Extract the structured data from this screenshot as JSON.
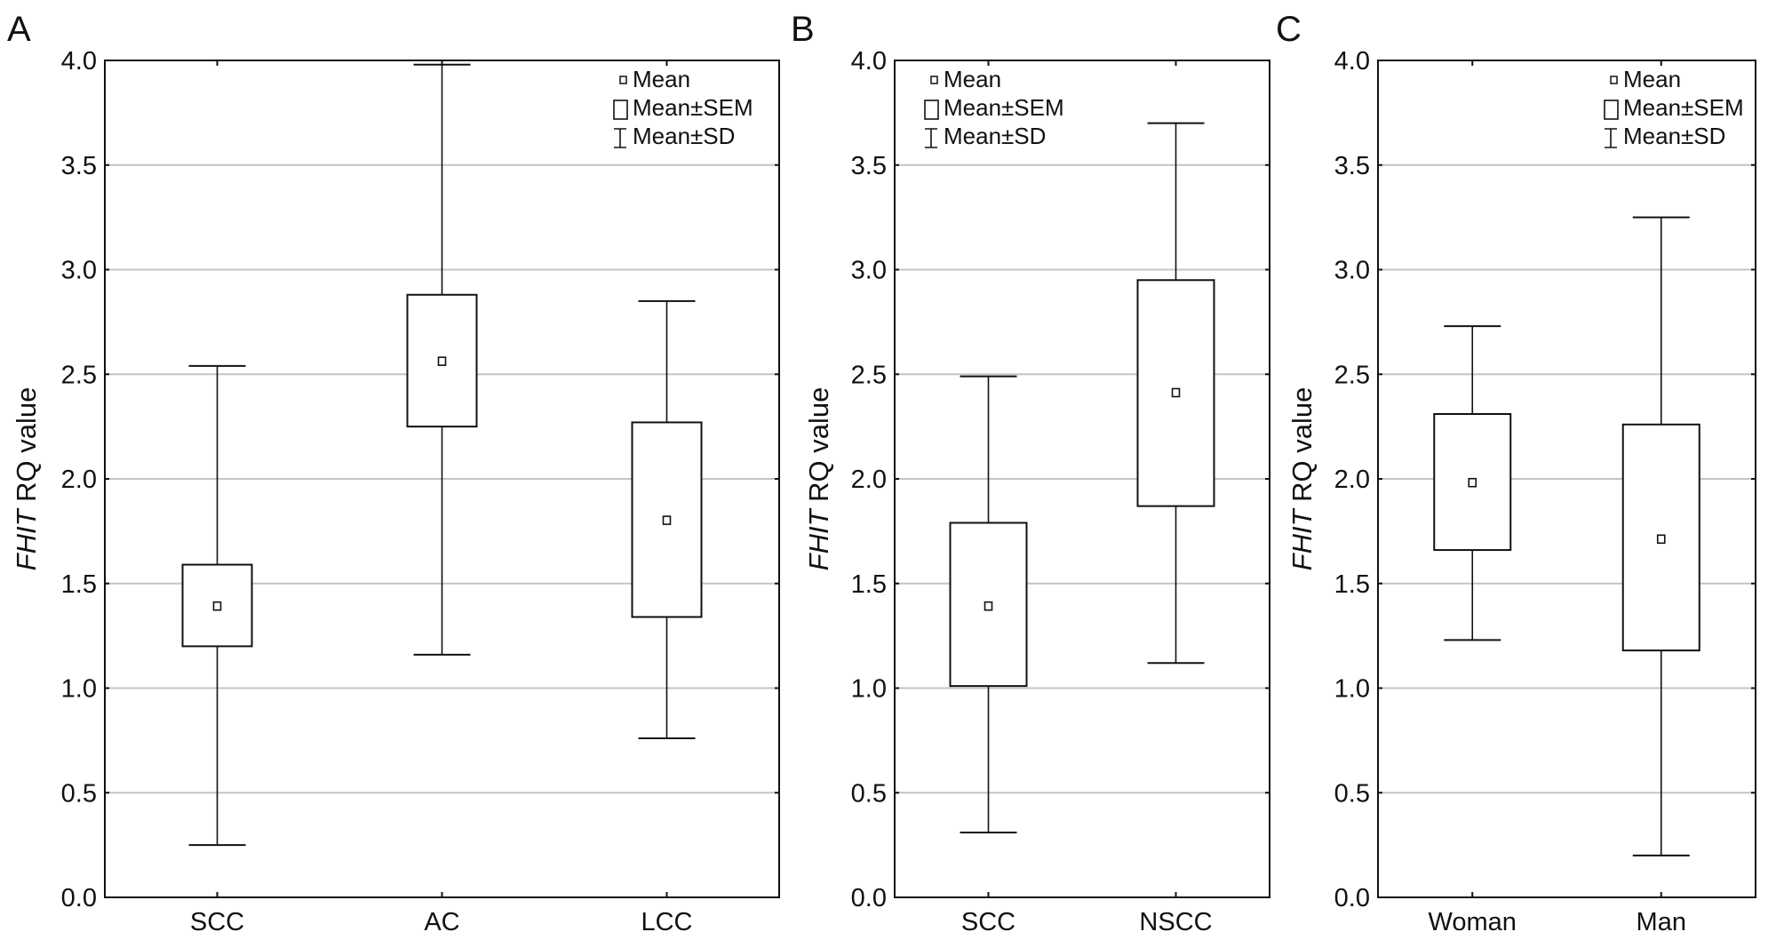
{
  "chart_data": [
    {
      "type": "box",
      "panel_label": "A",
      "ylabel_italic": "FHIT",
      "ylabel_rest": " RQ value",
      "ylim": [
        0,
        4
      ],
      "yticks": [
        "0.0",
        "0.5",
        "1.0",
        "1.5",
        "2.0",
        "2.5",
        "3.0",
        "3.5",
        "4.0"
      ],
      "grid": true,
      "legend_position": "top-right",
      "legend": [
        "Mean",
        "Mean±SEM",
        "Mean±SD"
      ],
      "categories": [
        "SCC",
        "AC",
        "LCC"
      ],
      "mean": [
        1.39,
        2.56,
        1.8
      ],
      "sem_low": [
        1.2,
        2.25,
        1.34
      ],
      "sem_high": [
        1.59,
        2.88,
        2.27
      ],
      "sd_low": [
        0.25,
        1.16,
        0.76
      ],
      "sd_high": [
        2.54,
        3.98,
        2.85
      ]
    },
    {
      "type": "box",
      "panel_label": "B",
      "ylabel_italic": "FHIT",
      "ylabel_rest": " RQ value",
      "ylim": [
        0,
        4
      ],
      "yticks": [
        "0.0",
        "0.5",
        "1.0",
        "1.5",
        "2.0",
        "2.5",
        "3.0",
        "3.5",
        "4.0"
      ],
      "grid": true,
      "legend_position": "top-left",
      "legend": [
        "Mean",
        "Mean±SEM",
        "Mean±SD"
      ],
      "categories": [
        "SCC",
        "NSCC"
      ],
      "mean": [
        1.39,
        2.41
      ],
      "sem_low": [
        1.01,
        1.87
      ],
      "sem_high": [
        1.79,
        2.95
      ],
      "sd_low": [
        0.31,
        1.12
      ],
      "sd_high": [
        2.49,
        3.7
      ]
    },
    {
      "type": "box",
      "panel_label": "C",
      "ylabel_italic": "FHIT",
      "ylabel_rest": " RQ value",
      "ylim": [
        0,
        4
      ],
      "yticks": [
        "0.0",
        "0.5",
        "1.0",
        "1.5",
        "2.0",
        "2.5",
        "3.0",
        "3.5",
        "4.0"
      ],
      "grid": true,
      "legend_position": "top-right",
      "legend": [
        "Mean",
        "Mean±SEM",
        "Mean±SD"
      ],
      "categories": [
        "Woman",
        "Man"
      ],
      "mean": [
        1.98,
        1.71
      ],
      "sem_low": [
        1.66,
        1.18
      ],
      "sem_high": [
        2.31,
        2.26
      ],
      "sd_low": [
        1.23,
        0.2
      ],
      "sd_high": [
        2.73,
        3.25
      ]
    }
  ]
}
